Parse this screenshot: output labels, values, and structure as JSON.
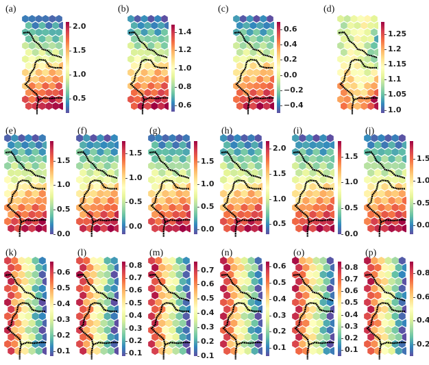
{
  "chart_data": [
    {
      "id": "a",
      "label": "(a)",
      "type": "heatmap",
      "pattern": "vertical",
      "range": [
        0.2,
        2.1
      ],
      "ticks": [
        0.5,
        1.0,
        1.5,
        2.0
      ],
      "tick_labels": [
        "0.5",
        "1.0",
        "1.5",
        "2.0"
      ]
    },
    {
      "id": "b",
      "label": "(b)",
      "type": "heatmap",
      "pattern": "vertical",
      "range": [
        0.53,
        1.48
      ],
      "ticks": [
        0.6,
        0.8,
        1.0,
        1.2,
        1.4
      ],
      "tick_labels": [
        "0.6",
        "0.8",
        "1.0",
        "1.2",
        "1.4"
      ]
    },
    {
      "id": "c",
      "label": "(c)",
      "type": "heatmap",
      "pattern": "vertical",
      "range": [
        -0.5,
        0.7
      ],
      "ticks": [
        -0.4,
        -0.2,
        0.0,
        0.2,
        0.4,
        0.6
      ],
      "tick_labels": [
        "−0.4",
        "−0.2",
        "0.0",
        "0.2",
        "0.4",
        "0.6"
      ]
    },
    {
      "id": "d",
      "label": "(d)",
      "type": "heatmap",
      "pattern": "mixed",
      "range": [
        0.99,
        1.29
      ],
      "ticks": [
        1.0,
        1.05,
        1.1,
        1.15,
        1.2,
        1.25
      ],
      "tick_labels": [
        "1.0",
        "1.05",
        "1.1",
        "1.15",
        "1.2",
        "1.25"
      ]
    },
    {
      "id": "e",
      "label": "(e)",
      "type": "heatmap",
      "pattern": "vertical",
      "range": [
        0.0,
        1.9
      ],
      "ticks": [
        0.0,
        0.5,
        1.0,
        1.5
      ],
      "tick_labels": [
        "0.0",
        "0.5",
        "1.0",
        "1.5"
      ]
    },
    {
      "id": "f",
      "label": "(f)",
      "type": "heatmap",
      "pattern": "vertical",
      "range": [
        -0.15,
        1.75
      ],
      "ticks": [
        0.0,
        0.5,
        1.0,
        1.5
      ],
      "tick_labels": [
        "0.0",
        "0.5",
        "1.0",
        "1.5"
      ]
    },
    {
      "id": "g",
      "label": "(g)",
      "type": "heatmap",
      "pattern": "vertical",
      "range": [
        -0.1,
        1.95
      ],
      "ticks": [
        0.0,
        0.5,
        1.0,
        1.5
      ],
      "tick_labels": [
        "0.0",
        "0.5",
        "1.0",
        "1.5"
      ]
    },
    {
      "id": "h",
      "label": "(h)",
      "type": "heatmap",
      "pattern": "vertical",
      "range": [
        0.3,
        2.15
      ],
      "ticks": [
        0.5,
        1.0,
        1.5,
        2.0
      ],
      "tick_labels": [
        "0.5",
        "1.0",
        "1.5",
        "2.0"
      ]
    },
    {
      "id": "i",
      "label": "(i)",
      "type": "heatmap",
      "pattern": "vertical",
      "range": [
        0.0,
        1.8
      ],
      "ticks": [
        0.0,
        0.5,
        1.0,
        1.5
      ],
      "tick_labels": [
        "0.0",
        "0.5",
        "1.0",
        "1.5"
      ]
    },
    {
      "id": "j",
      "label": "(j)",
      "type": "heatmap",
      "pattern": "vertical",
      "range": [
        -0.2,
        1.9
      ],
      "ticks": [
        0.0,
        0.5,
        1.0,
        1.5
      ],
      "tick_labels": [
        "0.0",
        "0.5",
        "1.0",
        "1.5"
      ]
    },
    {
      "id": "k",
      "label": "(k)",
      "type": "heatmap",
      "pattern": "horizontal",
      "range": [
        0.07,
        0.67
      ],
      "ticks": [
        0.1,
        0.2,
        0.3,
        0.4,
        0.5,
        0.6
      ],
      "tick_labels": [
        "0.1",
        "0.2",
        "0.3",
        "0.4",
        "0.5",
        "0.6"
      ]
    },
    {
      "id": "l",
      "label": "(l)",
      "type": "heatmap",
      "pattern": "horizontal",
      "range": [
        0.08,
        0.83
      ],
      "ticks": [
        0.1,
        0.2,
        0.3,
        0.4,
        0.5,
        0.6,
        0.7,
        0.8
      ],
      "tick_labels": [
        "0.1",
        "0.2",
        "0.3",
        "0.4",
        "0.5",
        "0.6",
        "0.7",
        "0.8"
      ]
    },
    {
      "id": "m",
      "label": "(m)",
      "type": "heatmap",
      "pattern": "horizontal",
      "range": [
        0.1,
        0.76
      ],
      "ticks": [
        0.1,
        0.2,
        0.3,
        0.4,
        0.5,
        0.6,
        0.7
      ],
      "tick_labels": [
        "0.1",
        "0.2",
        "0.3",
        "0.4",
        "0.5",
        "0.6",
        "0.7"
      ]
    },
    {
      "id": "n",
      "label": "(n)",
      "type": "heatmap",
      "pattern": "horizontal",
      "range": [
        0.05,
        0.63
      ],
      "ticks": [
        0.1,
        0.2,
        0.3,
        0.4,
        0.5,
        0.6
      ],
      "tick_labels": [
        "0.1",
        "0.2",
        "0.3",
        "0.4",
        "0.5",
        "0.6"
      ]
    },
    {
      "id": "o",
      "label": "(o)",
      "type": "heatmap",
      "pattern": "horizontal",
      "range": [
        0.05,
        0.85
      ],
      "ticks": [
        0.1,
        0.2,
        0.3,
        0.4,
        0.5,
        0.6,
        0.7,
        0.8
      ],
      "tick_labels": [
        "0.1",
        "0.2",
        "0.3",
        "0.4",
        "0.5",
        "0.6",
        "0.7",
        "0.8"
      ]
    },
    {
      "id": "p",
      "label": "(p)",
      "type": "heatmap",
      "pattern": "horizontal",
      "range": [
        0.1,
        0.9
      ],
      "ticks": [
        0.2,
        0.4,
        0.6,
        0.8
      ],
      "tick_labels": [
        "0.2",
        "0.4",
        "0.6",
        "0.8"
      ]
    }
  ],
  "colormap": [
    "#5e4fa2",
    "#3288bd",
    "#66c2a5",
    "#abdda4",
    "#e6f598",
    "#ffffbf",
    "#fee08b",
    "#fdae61",
    "#f46d43",
    "#d53e4f",
    "#9e0142"
  ]
}
